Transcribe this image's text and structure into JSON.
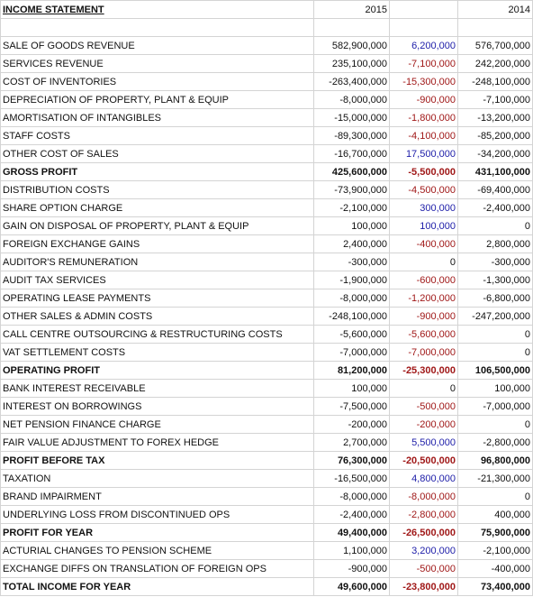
{
  "header": {
    "title": "INCOME STATEMENT",
    "col_2015": "2015",
    "col_2014": "2014"
  },
  "table": {
    "rows": [
      {
        "label": "SALE OF GOODS REVENUE",
        "y2015": "582,900,000",
        "change": "6,200,000",
        "y2014": "576,700,000"
      },
      {
        "label": "SERVICES REVENUE",
        "y2015": "235,100,000",
        "change": "-7,100,000",
        "y2014": "242,200,000"
      },
      {
        "label": "COST OF INVENTORIES",
        "y2015": "-263,400,000",
        "change": "-15,300,000",
        "y2014": "-248,100,000"
      },
      {
        "label": "DEPRECIATION OF PROPERTY, PLANT & EQUIP",
        "y2015": "-8,000,000",
        "change": "-900,000",
        "y2014": "-7,100,000"
      },
      {
        "label": "AMORTISATION OF INTANGIBLES",
        "y2015": "-15,000,000",
        "change": "-1,800,000",
        "y2014": "-13,200,000"
      },
      {
        "label": "STAFF COSTS",
        "y2015": "-89,300,000",
        "change": "-4,100,000",
        "y2014": "-85,200,000"
      },
      {
        "label": "OTHER COST OF SALES",
        "y2015": "-16,700,000",
        "change": "17,500,000",
        "y2014": "-34,200,000"
      },
      {
        "label": "GROSS PROFIT",
        "y2015": "425,600,000",
        "change": "-5,500,000",
        "y2014": "431,100,000",
        "bold": true
      },
      {
        "label": "DISTRIBUTION COSTS",
        "y2015": "-73,900,000",
        "change": "-4,500,000",
        "y2014": "-69,400,000"
      },
      {
        "label": "SHARE OPTION CHARGE",
        "y2015": "-2,100,000",
        "change": "300,000",
        "y2014": "-2,400,000"
      },
      {
        "label": "GAIN ON DISPOSAL OF PROPERTY, PLANT & EQUIP",
        "y2015": "100,000",
        "change": "100,000",
        "y2014": "0"
      },
      {
        "label": "FOREIGN EXCHANGE GAINS",
        "y2015": "2,400,000",
        "change": "-400,000",
        "y2014": "2,800,000"
      },
      {
        "label": "AUDITOR'S REMUNERATION",
        "y2015": "-300,000",
        "change": "0",
        "y2014": "-300,000"
      },
      {
        "label": "AUDIT TAX SERVICES",
        "y2015": "-1,900,000",
        "change": "-600,000",
        "y2014": "-1,300,000"
      },
      {
        "label": "OPERATING LEASE PAYMENTS",
        "y2015": "-8,000,000",
        "change": "-1,200,000",
        "y2014": "-6,800,000"
      },
      {
        "label": "OTHER SALES & ADMIN COSTS",
        "y2015": "-248,100,000",
        "change": "-900,000",
        "y2014": "-247,200,000"
      },
      {
        "label": "CALL CENTRE OUTSOURCING & RESTRUCTURING COSTS",
        "y2015": "-5,600,000",
        "change": "-5,600,000",
        "y2014": "0"
      },
      {
        "label": "VAT SETTLEMENT COSTS",
        "y2015": "-7,000,000",
        "change": "-7,000,000",
        "y2014": "0"
      },
      {
        "label": "OPERATING PROFIT",
        "y2015": "81,200,000",
        "change": "-25,300,000",
        "y2014": "106,500,000",
        "bold": true
      },
      {
        "label": "BANK INTEREST RECEIVABLE",
        "y2015": "100,000",
        "change": "0",
        "y2014": "100,000"
      },
      {
        "label": "INTEREST ON BORROWINGS",
        "y2015": "-7,500,000",
        "change": "-500,000",
        "y2014": "-7,000,000"
      },
      {
        "label": "NET PENSION FINANCE CHARGE",
        "y2015": "-200,000",
        "change": "-200,000",
        "y2014": "0"
      },
      {
        "label": "FAIR VALUE ADJUSTMENT TO FOREX HEDGE",
        "y2015": "2,700,000",
        "change": "5,500,000",
        "y2014": "-2,800,000"
      },
      {
        "label": "PROFIT BEFORE TAX",
        "y2015": "76,300,000",
        "change": "-20,500,000",
        "y2014": "96,800,000",
        "bold": true
      },
      {
        "label": "TAXATION",
        "y2015": "-16,500,000",
        "change": "4,800,000",
        "y2014": "-21,300,000"
      },
      {
        "label": "BRAND IMPAIRMENT",
        "y2015": "-8,000,000",
        "change": "-8,000,000",
        "y2014": "0"
      },
      {
        "label": "UNDERLYING LOSS FROM DISCONTINUED OPS",
        "y2015": "-2,400,000",
        "change": "-2,800,000",
        "y2014": "400,000"
      },
      {
        "label": "PROFIT FOR YEAR",
        "y2015": "49,400,000",
        "change": "-26,500,000",
        "y2014": "75,900,000",
        "bold": true
      },
      {
        "label": "ACTURIAL CHANGES TO PENSION SCHEME",
        "y2015": "1,100,000",
        "change": "3,200,000",
        "y2014": "-2,100,000"
      },
      {
        "label": "EXCHANGE DIFFS ON TRANSLATION OF FOREIGN OPS",
        "y2015": "-900,000",
        "change": "-500,000",
        "y2014": "-400,000"
      },
      {
        "label": "TOTAL INCOME FOR YEAR",
        "y2015": "49,600,000",
        "change": "-23,800,000",
        "y2014": "73,400,000",
        "bold": true
      }
    ]
  }
}
